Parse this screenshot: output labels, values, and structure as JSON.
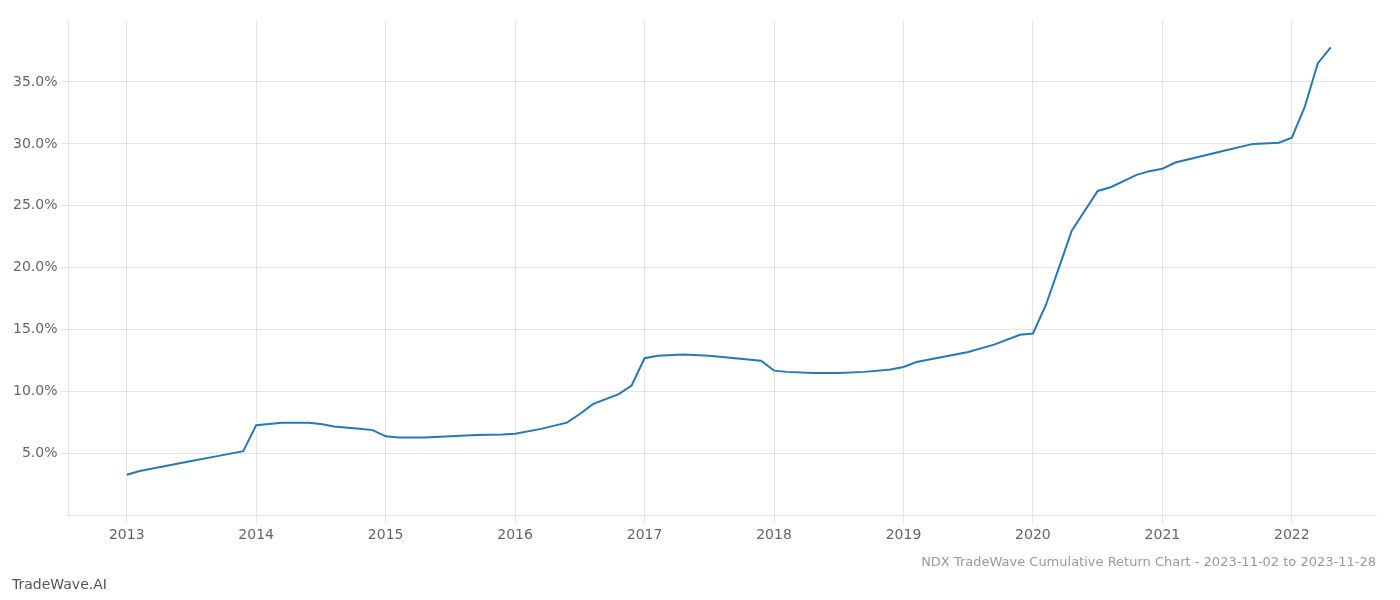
{
  "chart_data": {
    "type": "line",
    "title": "NDX TradeWave Cumulative Return Chart - 2023-11-02 to 2023-11-28",
    "annotations": [
      "TradeWave.AI"
    ],
    "x": [
      2013.0,
      2013.1,
      2013.3,
      2013.5,
      2013.7,
      2013.9,
      2014.0,
      2014.2,
      2014.4,
      2014.5,
      2014.6,
      2014.8,
      2014.9,
      2015.0,
      2015.1,
      2015.3,
      2015.5,
      2015.7,
      2015.9,
      2016.0,
      2016.2,
      2016.4,
      2016.5,
      2016.6,
      2016.8,
      2016.9,
      2017.0,
      2017.1,
      2017.3,
      2017.5,
      2017.7,
      2017.9,
      2018.0,
      2018.1,
      2018.3,
      2018.5,
      2018.7,
      2018.9,
      2019.0,
      2019.1,
      2019.3,
      2019.5,
      2019.7,
      2019.9,
      2020.0,
      2020.1,
      2020.2,
      2020.3,
      2020.5,
      2020.6,
      2020.7,
      2020.8,
      2020.9,
      2021.0,
      2021.1,
      2021.3,
      2021.5,
      2021.7,
      2021.9,
      2022.0,
      2022.1,
      2022.2,
      2022.3
    ],
    "values": [
      3.3,
      3.6,
      4.0,
      4.4,
      4.8,
      5.2,
      7.3,
      7.5,
      7.5,
      7.4,
      7.2,
      7.0,
      6.9,
      6.4,
      6.3,
      6.3,
      6.4,
      6.5,
      6.55,
      6.6,
      7.0,
      7.5,
      8.2,
      9.0,
      9.8,
      10.5,
      12.7,
      12.9,
      13.0,
      12.9,
      12.7,
      12.5,
      11.7,
      11.6,
      11.5,
      11.5,
      11.6,
      11.8,
      12.0,
      12.4,
      12.8,
      13.2,
      13.8,
      14.6,
      14.7,
      17.0,
      20.0,
      23.0,
      26.2,
      26.5,
      27.0,
      27.5,
      27.8,
      28.0,
      28.5,
      29.0,
      29.5,
      30.0,
      30.1,
      30.5,
      33.0,
      36.5,
      37.8
    ],
    "color": "#2878b5",
    "marker": "none",
    "xlim": [
      2012.55,
      2022.65
    ],
    "xticks": [
      2013,
      2014,
      2015,
      2016,
      2017,
      2018,
      2019,
      2020,
      2021,
      2022
    ],
    "ylim": [
      0,
      40
    ],
    "yticks": [
      {
        "value": 5.0,
        "label": "5.0%"
      },
      {
        "value": 10.0,
        "label": "10.0%"
      },
      {
        "value": 15.0,
        "label": "15.0%"
      },
      {
        "value": 20.0,
        "label": "20.0%"
      },
      {
        "value": 25.0,
        "label": "25.0%"
      },
      {
        "value": 30.0,
        "label": "30.0%"
      },
      {
        "value": 35.0,
        "label": "35.0%"
      }
    ],
    "grid": true
  }
}
